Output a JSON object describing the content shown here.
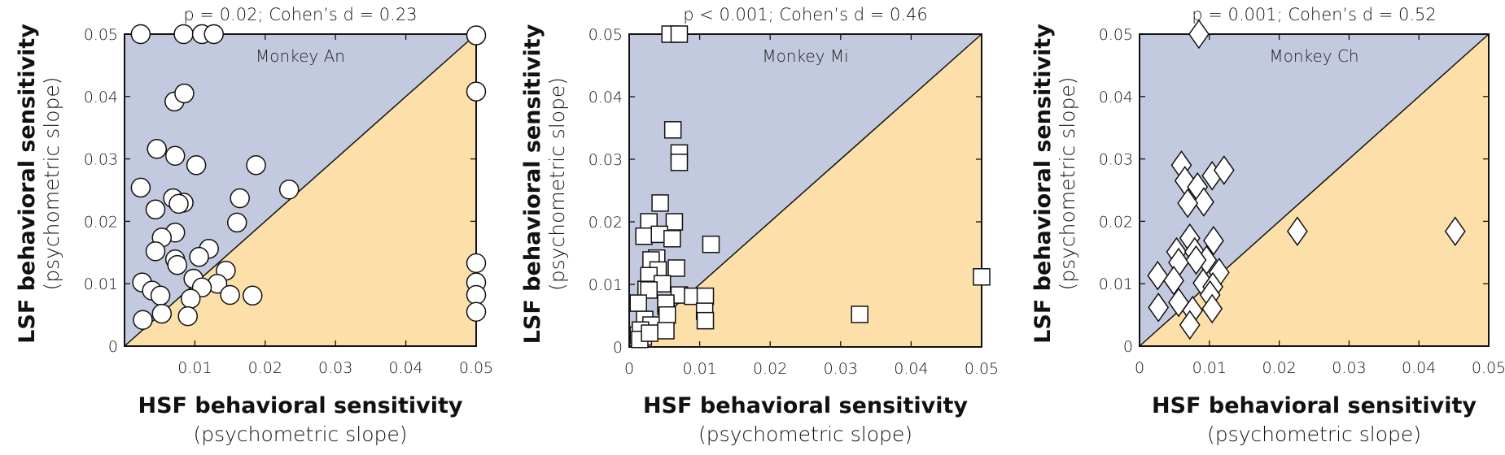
{
  "colors": {
    "upper_region": "#c3cadf",
    "lower_region": "#fde0a9",
    "marker_fill": "#ffffff",
    "marker_edge": "#111111",
    "axis": "#111111"
  },
  "chart_data": [
    {
      "type": "scatter",
      "panel": "Monkey An",
      "marker": "circle",
      "title": "p = 0.02; Cohen’s d = 0.23",
      "annotation": "Monkey An",
      "xlabel": "HSF behavioral sensitivity",
      "xlabel_sub": "(psychometric slope)",
      "ylabel": "LSF behavioral sensitivity",
      "ylabel_sub": "(psychometric slope)",
      "xlim": [
        0,
        0.05
      ],
      "ylim": [
        0,
        0.05
      ],
      "xticks": [
        "",
        "0.01",
        "0.02",
        "0.03",
        "0.04",
        "0.05"
      ],
      "yticks": [
        "0",
        "0.01",
        "0.02",
        "0.03",
        "0.04",
        "0.05"
      ],
      "regions": [
        "upper-left of unity line shaded blue",
        "lower-right of unity line shaded orange"
      ],
      "grid": false,
      "points": [
        [
          0.0023,
          0.05
        ],
        [
          0.0084,
          0.05
        ],
        [
          0.011,
          0.05
        ],
        [
          0.0127,
          0.05
        ],
        [
          0.0071,
          0.0392
        ],
        [
          0.0085,
          0.0405
        ],
        [
          0.0046,
          0.0316
        ],
        [
          0.0072,
          0.0305
        ],
        [
          0.0102,
          0.029
        ],
        [
          0.0187,
          0.029
        ],
        [
          0.0023,
          0.0254
        ],
        [
          0.0234,
          0.0251
        ],
        [
          0.0069,
          0.0237
        ],
        [
          0.0084,
          0.023
        ],
        [
          0.0077,
          0.0228
        ],
        [
          0.0044,
          0.0219
        ],
        [
          0.0164,
          0.0237
        ],
        [
          0.016,
          0.0198
        ],
        [
          0.0072,
          0.0182
        ],
        [
          0.0053,
          0.0174
        ],
        [
          0.0044,
          0.0152
        ],
        [
          0.012,
          0.0156
        ],
        [
          0.0072,
          0.0139
        ],
        [
          0.0106,
          0.0143
        ],
        [
          0.0075,
          0.013
        ],
        [
          0.0144,
          0.0121
        ],
        [
          0.0025,
          0.0102
        ],
        [
          0.0098,
          0.0108
        ],
        [
          0.0132,
          0.01
        ],
        [
          0.011,
          0.0094
        ],
        [
          0.0039,
          0.0089
        ],
        [
          0.0051,
          0.0081
        ],
        [
          0.015,
          0.0082
        ],
        [
          0.0182,
          0.0081
        ],
        [
          0.0094,
          0.0076
        ],
        [
          0.0026,
          0.0042
        ],
        [
          0.0053,
          0.0052
        ],
        [
          0.009,
          0.0048
        ],
        [
          0.05,
          0.0498
        ],
        [
          0.05,
          0.0408
        ],
        [
          0.05,
          0.0133
        ],
        [
          0.05,
          0.0102
        ],
        [
          0.05,
          0.0082
        ],
        [
          0.05,
          0.0055
        ]
      ]
    },
    {
      "type": "scatter",
      "panel": "Monkey Mi",
      "marker": "square",
      "title": "p < 0.001; Cohen’s d = 0.46",
      "annotation": "Monkey Mi",
      "xlabel": "HSF behavioral sensitivity",
      "xlabel_sub": "(psychometric slope)",
      "ylabel": "LSF behavioral sensitivity",
      "ylabel_sub": "(psychometric slope)",
      "xlim": [
        0,
        0.05
      ],
      "ylim": [
        0,
        0.05
      ],
      "xticks": [
        "0",
        "0.01",
        "0.02",
        "0.03",
        "0.04",
        "0.05"
      ],
      "yticks": [
        "0",
        "0.01",
        "0.02",
        "0.03",
        "0.04",
        "0.05"
      ],
      "grid": false,
      "points": [
        [
          0.0058,
          0.05
        ],
        [
          0.0071,
          0.05
        ],
        [
          0.0062,
          0.0347
        ],
        [
          0.0071,
          0.031
        ],
        [
          0.0071,
          0.0295
        ],
        [
          0.0044,
          0.023
        ],
        [
          0.0028,
          0.02
        ],
        [
          0.0064,
          0.02
        ],
        [
          0.0021,
          0.0177
        ],
        [
          0.0043,
          0.018
        ],
        [
          0.0061,
          0.0173
        ],
        [
          0.0116,
          0.0164
        ],
        [
          0.0039,
          0.0142
        ],
        [
          0.0031,
          0.0139
        ],
        [
          0.0067,
          0.0126
        ],
        [
          0.0041,
          0.0123
        ],
        [
          0.0028,
          0.0114
        ],
        [
          0.0047,
          0.0101
        ],
        [
          0.0024,
          0.0092
        ],
        [
          0.0028,
          0.0091
        ],
        [
          0.0071,
          0.0083
        ],
        [
          0.009,
          0.0081
        ],
        [
          0.0108,
          0.0081
        ],
        [
          0.0013,
          0.007
        ],
        [
          0.0052,
          0.0065
        ],
        [
          0.0107,
          0.0057
        ],
        [
          0.0052,
          0.007
        ],
        [
          0.0022,
          0.0044
        ],
        [
          0.0054,
          0.0051
        ],
        [
          0.0108,
          0.0042
        ],
        [
          0.0031,
          0.0035
        ],
        [
          0.0013,
          0.0019
        ],
        [
          0.0052,
          0.0026
        ],
        [
          0.002,
          0.0016
        ],
        [
          0.0016,
          0.0027
        ],
        [
          0.0015,
          0.0012
        ],
        [
          0.0029,
          0.0022
        ],
        [
          0.0327,
          0.0052
        ],
        [
          0.05,
          0.0112
        ]
      ]
    },
    {
      "type": "scatter",
      "panel": "Monkey Ch",
      "marker": "diamond",
      "title": "p = 0.001; Cohen’s d = 0.52",
      "annotation": "Monkey Ch",
      "xlabel": "HSF behavioral sensitivity",
      "xlabel_sub": "(psychometric slope)",
      "ylabel": "LSF behavioral sensitivity",
      "ylabel_sub": "(psychometric slope)",
      "xlim": [
        0,
        0.05
      ],
      "ylim": [
        0,
        0.05
      ],
      "xticks": [
        "0",
        "0.01",
        "0.02",
        "0.03",
        "0.04",
        "0.05"
      ],
      "yticks": [
        "0",
        "0.01",
        "0.02",
        "0.03",
        "0.04",
        "0.05"
      ],
      "grid": false,
      "points": [
        [
          0.0085,
          0.05
        ],
        [
          0.006,
          0.029
        ],
        [
          0.0065,
          0.0265
        ],
        [
          0.0083,
          0.0255
        ],
        [
          0.0104,
          0.0273
        ],
        [
          0.0121,
          0.0282
        ],
        [
          0.0092,
          0.0231
        ],
        [
          0.0069,
          0.0229
        ],
        [
          0.0072,
          0.0173
        ],
        [
          0.0106,
          0.0169
        ],
        [
          0.0053,
          0.0151
        ],
        [
          0.0079,
          0.0151
        ],
        [
          0.0056,
          0.0134
        ],
        [
          0.0096,
          0.0138
        ],
        [
          0.0081,
          0.0138
        ],
        [
          0.0026,
          0.0113
        ],
        [
          0.0049,
          0.0105
        ],
        [
          0.0091,
          0.0101
        ],
        [
          0.0114,
          0.0118
        ],
        [
          0.0105,
          0.0095
        ],
        [
          0.0101,
          0.0082
        ],
        [
          0.0027,
          0.0062
        ],
        [
          0.0056,
          0.007
        ],
        [
          0.0076,
          0.0057
        ],
        [
          0.0104,
          0.006
        ],
        [
          0.0072,
          0.0034
        ],
        [
          0.0226,
          0.0184
        ],
        [
          0.0452,
          0.0184
        ]
      ]
    }
  ]
}
